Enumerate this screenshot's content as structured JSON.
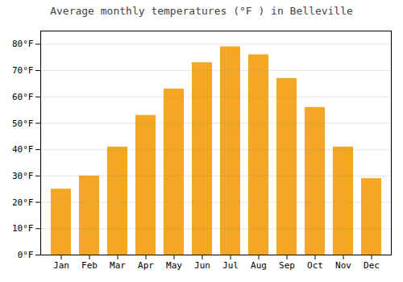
{
  "chart_data": {
    "type": "bar",
    "title": "Average monthly temperatures (°F ) in Belleville",
    "categories": [
      "Jan",
      "Feb",
      "Mar",
      "Apr",
      "May",
      "Jun",
      "Jul",
      "Aug",
      "Sep",
      "Oct",
      "Nov",
      "Dec"
    ],
    "values": [
      25,
      30,
      41,
      53,
      63,
      73,
      79,
      76,
      67,
      56,
      41,
      29
    ],
    "color": "#F5A623",
    "ylim": [
      0,
      85
    ],
    "yticks": [
      {
        "value": 0,
        "label": "0°F"
      },
      {
        "value": 10,
        "label": "10°F"
      },
      {
        "value": 20,
        "label": "20°F"
      },
      {
        "value": 30,
        "label": "30°F"
      },
      {
        "value": 40,
        "label": "40°F"
      },
      {
        "value": 50,
        "label": "50°F"
      },
      {
        "value": 60,
        "label": "60°F"
      },
      {
        "value": 70,
        "label": "70°F"
      },
      {
        "value": 80,
        "label": "80°F"
      }
    ],
    "grid": true
  }
}
